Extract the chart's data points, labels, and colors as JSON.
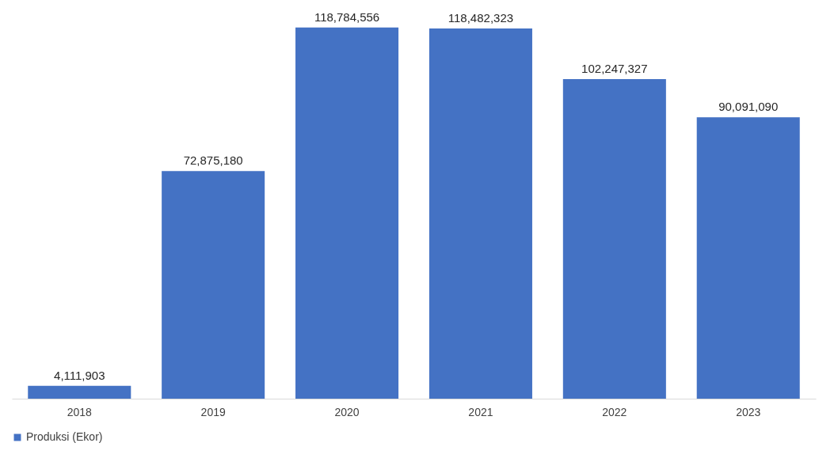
{
  "chart_data": {
    "type": "bar",
    "categories": [
      "2018",
      "2019",
      "2020",
      "2021",
      "2022",
      "2023"
    ],
    "series": [
      {
        "name": "Produksi (Ekor)",
        "color": "#4472c4",
        "values": [
          4111903,
          72875180,
          118784556,
          118482323,
          102247327,
          90091090
        ],
        "value_labels": [
          "4,111,903",
          "72,875,180",
          "118,784,556",
          "118,482,323",
          "102,247,327",
          "90,091,090"
        ]
      }
    ],
    "legend": "bottom",
    "grid": false,
    "tick_labels": "x"
  }
}
